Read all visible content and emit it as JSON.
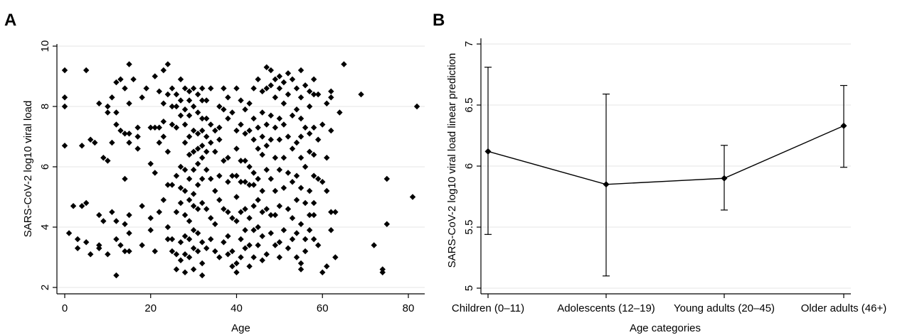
{
  "panels": {
    "a": {
      "letter": "A"
    },
    "b": {
      "letter": "B"
    }
  },
  "chart_data": [
    {
      "type": "scatter",
      "panel": "A",
      "xlabel": "Age",
      "ylabel": "SARS-CoV-2 log10 viral load",
      "xlim": [
        -1,
        83
      ],
      "ylim": [
        2,
        10.2
      ],
      "xticks": [
        0,
        20,
        40,
        60,
        80
      ],
      "yticks": [
        2,
        4,
        6,
        8,
        10
      ],
      "grid": "horizontal",
      "marker": "diamond",
      "points": [
        [
          0,
          9.2
        ],
        [
          0,
          8.3
        ],
        [
          0,
          8.0
        ],
        [
          0,
          6.7
        ],
        [
          1,
          3.8
        ],
        [
          2,
          4.7
        ],
        [
          3,
          3.6
        ],
        [
          3,
          3.3
        ],
        [
          4,
          6.7
        ],
        [
          4,
          4.7
        ],
        [
          5,
          9.2
        ],
        [
          5,
          4.8
        ],
        [
          5,
          3.5
        ],
        [
          6,
          6.9
        ],
        [
          6,
          3.1
        ],
        [
          7,
          6.8
        ],
        [
          8,
          8.1
        ],
        [
          8,
          4.4
        ],
        [
          8,
          3.4
        ],
        [
          8,
          3.3
        ],
        [
          9,
          6.3
        ],
        [
          9,
          4.2
        ],
        [
          10,
          8.0
        ],
        [
          10,
          7.8
        ],
        [
          10,
          6.2
        ],
        [
          10,
          3.1
        ],
        [
          11,
          8.3
        ],
        [
          11,
          6.8
        ],
        [
          11,
          4.5
        ],
        [
          12,
          8.8
        ],
        [
          12,
          7.8
        ],
        [
          12,
          7.4
        ],
        [
          12,
          4.2
        ],
        [
          12,
          3.6
        ],
        [
          12,
          2.4
        ],
        [
          13,
          8.9
        ],
        [
          13,
          7.2
        ],
        [
          13,
          3.4
        ],
        [
          14,
          8.6
        ],
        [
          14,
          7.1
        ],
        [
          14,
          5.6
        ],
        [
          14,
          4.1
        ],
        [
          14,
          3.2
        ],
        [
          15,
          9.4
        ],
        [
          15,
          8.1
        ],
        [
          15,
          7.1
        ],
        [
          15,
          6.8
        ],
        [
          15,
          4.4
        ],
        [
          15,
          3.8
        ],
        [
          15,
          3.2
        ],
        [
          16,
          8.9
        ],
        [
          17,
          7.3
        ],
        [
          17,
          7.0
        ],
        [
          17,
          6.6
        ],
        [
          18,
          8.3
        ],
        [
          18,
          4.7
        ],
        [
          18,
          3.4
        ],
        [
          19,
          8.6
        ],
        [
          20,
          7.3
        ],
        [
          20,
          6.1
        ],
        [
          20,
          4.3
        ],
        [
          20,
          3.9
        ],
        [
          21,
          9.0
        ],
        [
          21,
          7.3
        ],
        [
          21,
          5.8
        ],
        [
          21,
          3.2
        ],
        [
          22,
          8.5
        ],
        [
          22,
          7.3
        ],
        [
          22,
          6.8
        ],
        [
          22,
          4.5
        ],
        [
          23,
          9.2
        ],
        [
          23,
          8.1
        ],
        [
          23,
          7.5
        ],
        [
          23,
          7.0
        ],
        [
          23,
          4.9
        ],
        [
          24,
          9.4
        ],
        [
          24,
          8.4
        ],
        [
          24,
          6.5
        ],
        [
          24,
          5.4
        ],
        [
          24,
          4.0
        ],
        [
          24,
          3.6
        ],
        [
          25,
          8.6
        ],
        [
          25,
          8.0
        ],
        [
          25,
          7.4
        ],
        [
          25,
          5.4
        ],
        [
          25,
          3.6
        ],
        [
          25,
          3.2
        ],
        [
          26,
          8.4
        ],
        [
          26,
          8.0
        ],
        [
          26,
          7.3
        ],
        [
          26,
          5.7
        ],
        [
          26,
          4.5
        ],
        [
          26,
          3.1
        ],
        [
          26,
          2.6
        ],
        [
          27,
          8.9
        ],
        [
          27,
          8.2
        ],
        [
          27,
          7.7
        ],
        [
          27,
          6.0
        ],
        [
          27,
          5.3
        ],
        [
          27,
          4.8
        ],
        [
          27,
          3.5
        ],
        [
          27,
          2.9
        ],
        [
          28,
          8.6
        ],
        [
          28,
          7.9
        ],
        [
          28,
          7.4
        ],
        [
          28,
          6.8
        ],
        [
          28,
          5.9
        ],
        [
          28,
          5.2
        ],
        [
          28,
          4.4
        ],
        [
          28,
          3.7
        ],
        [
          28,
          3.1
        ],
        [
          28,
          2.5
        ],
        [
          29,
          8.5
        ],
        [
          29,
          8.2
        ],
        [
          29,
          7.7
        ],
        [
          29,
          7.0
        ],
        [
          29,
          6.4
        ],
        [
          29,
          5.6
        ],
        [
          29,
          4.9
        ],
        [
          29,
          4.2
        ],
        [
          29,
          3.6
        ],
        [
          29,
          3.0
        ],
        [
          30,
          8.6
        ],
        [
          30,
          8.0
        ],
        [
          30,
          7.2
        ],
        [
          30,
          6.5
        ],
        [
          30,
          5.9
        ],
        [
          30,
          5.1
        ],
        [
          30,
          4.7
        ],
        [
          30,
          3.9
        ],
        [
          30,
          3.3
        ],
        [
          30,
          2.6
        ],
        [
          31,
          8.4
        ],
        [
          31,
          7.8
        ],
        [
          31,
          7.1
        ],
        [
          31,
          6.6
        ],
        [
          31,
          6.1
        ],
        [
          31,
          5.4
        ],
        [
          31,
          4.6
        ],
        [
          31,
          3.8
        ],
        [
          31,
          3.2
        ],
        [
          32,
          8.6
        ],
        [
          32,
          8.2
        ],
        [
          32,
          7.6
        ],
        [
          32,
          7.2
        ],
        [
          32,
          6.7
        ],
        [
          32,
          6.3
        ],
        [
          32,
          5.6
        ],
        [
          32,
          4.8
        ],
        [
          32,
          3.5
        ],
        [
          32,
          2.8
        ],
        [
          32,
          2.4
        ],
        [
          33,
          8.2
        ],
        [
          33,
          7.6
        ],
        [
          33,
          7.0
        ],
        [
          33,
          6.5
        ],
        [
          33,
          5.9
        ],
        [
          33,
          4.6
        ],
        [
          33,
          3.3
        ],
        [
          34,
          8.6
        ],
        [
          34,
          7.4
        ],
        [
          34,
          6.8
        ],
        [
          34,
          5.6
        ],
        [
          34,
          4.3
        ],
        [
          34,
          3.6
        ],
        [
          35,
          7.2
        ],
        [
          35,
          6.5
        ],
        [
          35,
          5.2
        ],
        [
          35,
          4.1
        ],
        [
          35,
          3.2
        ],
        [
          36,
          8.0
        ],
        [
          36,
          7.3
        ],
        [
          36,
          6.9
        ],
        [
          36,
          5.7
        ],
        [
          36,
          4.9
        ],
        [
          36,
          3.0
        ],
        [
          37,
          8.6
        ],
        [
          37,
          7.9
        ],
        [
          37,
          6.2
        ],
        [
          37,
          4.6
        ],
        [
          37,
          3.5
        ],
        [
          38,
          8.3
        ],
        [
          38,
          7.6
        ],
        [
          38,
          6.3
        ],
        [
          38,
          5.5
        ],
        [
          38,
          4.5
        ],
        [
          38,
          3.7
        ],
        [
          38,
          3.1
        ],
        [
          39,
          7.8
        ],
        [
          39,
          5.7
        ],
        [
          39,
          4.3
        ],
        [
          39,
          3.2
        ],
        [
          39,
          2.7
        ],
        [
          40,
          8.6
        ],
        [
          40,
          7.2
        ],
        [
          40,
          6.6
        ],
        [
          40,
          5.7
        ],
        [
          40,
          5.0
        ],
        [
          40,
          4.2
        ],
        [
          40,
          2.8
        ],
        [
          40,
          2.5
        ],
        [
          41,
          8.2
        ],
        [
          41,
          7.4
        ],
        [
          41,
          6.2
        ],
        [
          41,
          5.5
        ],
        [
          41,
          4.5
        ],
        [
          41,
          3.6
        ],
        [
          41,
          3.0
        ],
        [
          42,
          7.9
        ],
        [
          42,
          7.1
        ],
        [
          42,
          6.2
        ],
        [
          42,
          5.5
        ],
        [
          42,
          4.6
        ],
        [
          42,
          3.9
        ],
        [
          42,
          3.3
        ],
        [
          43,
          8.1
        ],
        [
          43,
          7.2
        ],
        [
          43,
          6.0
        ],
        [
          43,
          5.4
        ],
        [
          43,
          4.3
        ],
        [
          43,
          3.4
        ],
        [
          43,
          2.7
        ],
        [
          44,
          8.6
        ],
        [
          44,
          7.6
        ],
        [
          44,
          6.9
        ],
        [
          44,
          5.8
        ],
        [
          44,
          5.4
        ],
        [
          44,
          4.7
        ],
        [
          44,
          3.9
        ],
        [
          44,
          3.0
        ],
        [
          45,
          8.9
        ],
        [
          45,
          7.3
        ],
        [
          45,
          6.6
        ],
        [
          45,
          5.6
        ],
        [
          45,
          4.9
        ],
        [
          45,
          4.0
        ],
        [
          45,
          3.4
        ],
        [
          46,
          8.5
        ],
        [
          46,
          7.8
        ],
        [
          46,
          7.0
        ],
        [
          46,
          6.4
        ],
        [
          46,
          5.2
        ],
        [
          46,
          4.5
        ],
        [
          46,
          3.7
        ],
        [
          46,
          2.9
        ],
        [
          47,
          9.3
        ],
        [
          47,
          8.6
        ],
        [
          47,
          7.4
        ],
        [
          47,
          6.7
        ],
        [
          47,
          5.9
        ],
        [
          47,
          4.6
        ],
        [
          47,
          3.1
        ],
        [
          48,
          9.2
        ],
        [
          48,
          8.7
        ],
        [
          48,
          7.7
        ],
        [
          48,
          6.9
        ],
        [
          48,
          5.6
        ],
        [
          48,
          4.4
        ],
        [
          48,
          3.8
        ],
        [
          49,
          8.9
        ],
        [
          49,
          8.3
        ],
        [
          49,
          7.3
        ],
        [
          49,
          6.3
        ],
        [
          49,
          5.2
        ],
        [
          49,
          4.4
        ],
        [
          49,
          3.4
        ],
        [
          50,
          9.0
        ],
        [
          50,
          8.6
        ],
        [
          50,
          7.6
        ],
        [
          50,
          6.9
        ],
        [
          50,
          5.9
        ],
        [
          50,
          4.7
        ],
        [
          50,
          3.5
        ],
        [
          50,
          3.0
        ],
        [
          51,
          8.8
        ],
        [
          51,
          8.1
        ],
        [
          51,
          7.4
        ],
        [
          51,
          6.3
        ],
        [
          51,
          5.3
        ],
        [
          51,
          3.9
        ],
        [
          52,
          9.1
        ],
        [
          52,
          8.4
        ],
        [
          52,
          7.0
        ],
        [
          52,
          5.8
        ],
        [
          52,
          4.6
        ],
        [
          52,
          3.3
        ],
        [
          53,
          8.9
        ],
        [
          53,
          7.7
        ],
        [
          53,
          6.6
        ],
        [
          53,
          5.5
        ],
        [
          53,
          4.3
        ],
        [
          53,
          3.6
        ],
        [
          54,
          8.6
        ],
        [
          54,
          7.9
        ],
        [
          54,
          6.8
        ],
        [
          54,
          5.7
        ],
        [
          54,
          4.9
        ],
        [
          54,
          3.8
        ],
        [
          54,
          3.0
        ],
        [
          55,
          9.2
        ],
        [
          55,
          8.3
        ],
        [
          55,
          7.6
        ],
        [
          55,
          7.0
        ],
        [
          55,
          6.3
        ],
        [
          55,
          5.3
        ],
        [
          55,
          4.1
        ],
        [
          55,
          2.8
        ],
        [
          55,
          2.6
        ],
        [
          56,
          8.7
        ],
        [
          56,
          7.3
        ],
        [
          56,
          6.0
        ],
        [
          56,
          4.8
        ],
        [
          56,
          3.6
        ],
        [
          56,
          3.2
        ],
        [
          57,
          8.5
        ],
        [
          57,
          8.0
        ],
        [
          57,
          7.1
        ],
        [
          57,
          6.5
        ],
        [
          57,
          5.2
        ],
        [
          57,
          4.4
        ],
        [
          57,
          3.9
        ],
        [
          58,
          8.9
        ],
        [
          58,
          8.4
        ],
        [
          58,
          7.3
        ],
        [
          58,
          6.4
        ],
        [
          58,
          5.7
        ],
        [
          58,
          4.8
        ],
        [
          58,
          4.4
        ],
        [
          58,
          3.6
        ],
        [
          59,
          8.4
        ],
        [
          59,
          6.9
        ],
        [
          59,
          5.6
        ],
        [
          59,
          3.4
        ],
        [
          60,
          7.4
        ],
        [
          60,
          5.5
        ],
        [
          60,
          2.5
        ],
        [
          61,
          8.1
        ],
        [
          61,
          6.3
        ],
        [
          61,
          5.2
        ],
        [
          61,
          2.7
        ],
        [
          62,
          8.5
        ],
        [
          62,
          8.3
        ],
        [
          62,
          7.2
        ],
        [
          62,
          4.5
        ],
        [
          62,
          3.9
        ],
        [
          63,
          4.5
        ],
        [
          63,
          3.0
        ],
        [
          64,
          7.8
        ],
        [
          65,
          9.4
        ],
        [
          69,
          8.4
        ],
        [
          72,
          3.4
        ],
        [
          74,
          2.6
        ],
        [
          74,
          2.5
        ],
        [
          75,
          5.6
        ],
        [
          75,
          4.1
        ],
        [
          81,
          5.0
        ],
        [
          82,
          8.0
        ]
      ]
    },
    {
      "type": "line",
      "panel": "B",
      "xlabel": "Age categories",
      "ylabel": "SARS-CoV-2 log10 viral load linear prediction",
      "categories": [
        "Children (0–11)",
        "Adolescents (12–19)",
        "Young adults (20–45)",
        "Older adults (46+)"
      ],
      "values": [
        6.12,
        5.85,
        5.9,
        6.33
      ],
      "ci_low": [
        5.44,
        5.1,
        5.64,
        5.99
      ],
      "ci_high": [
        6.81,
        6.59,
        6.17,
        6.66
      ],
      "ylim": [
        4.95,
        7.05
      ],
      "yticks": [
        "5",
        "5.5",
        "6",
        "6.5",
        "7"
      ],
      "error_bars": true,
      "grid": "horizontal",
      "marker": "diamond"
    }
  ]
}
